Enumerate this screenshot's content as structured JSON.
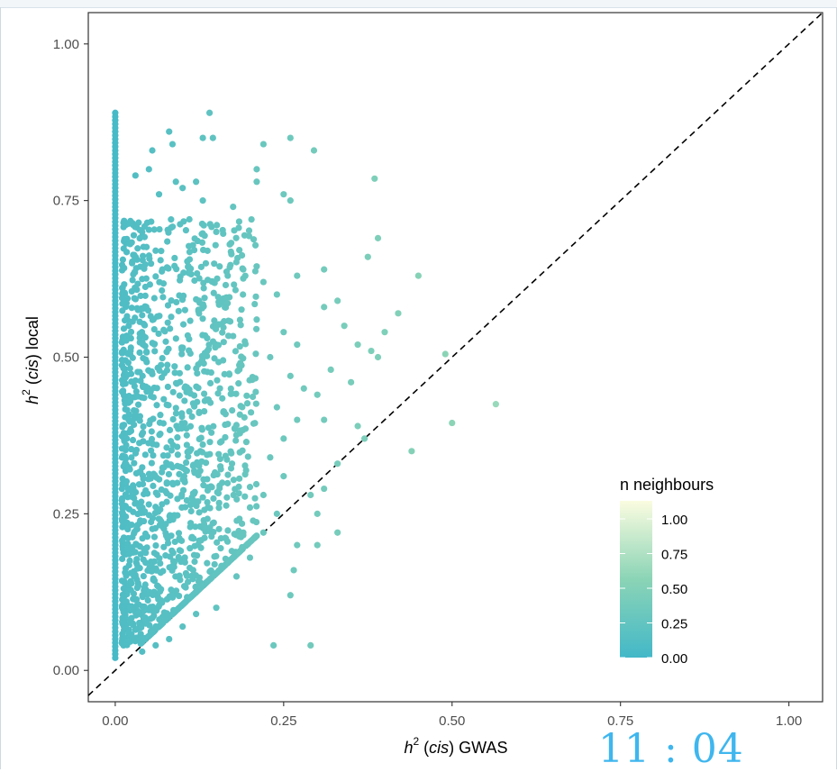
{
  "chart_data": {
    "type": "scatter",
    "title": "",
    "xlabel": {
      "math": "h",
      "sup": "2",
      "paren": "cis",
      "word": "GWAS"
    },
    "ylabel": {
      "math": "h",
      "sup": "2",
      "paren": "cis",
      "word": "local"
    },
    "xlim": [
      -0.04,
      1.05
    ],
    "ylim": [
      -0.05,
      1.05
    ],
    "x_ticks": [
      "0.00",
      "0.25",
      "0.50",
      "0.75",
      "1.00"
    ],
    "y_ticks": [
      "0.00",
      "0.25",
      "0.50",
      "0.75",
      "1.00"
    ],
    "grid": false,
    "reference_line": {
      "style": "dashed",
      "slope": 1,
      "intercept": 0
    },
    "color_scale": {
      "title": "n neighbours",
      "ticks": [
        "0.00",
        "0.25",
        "0.50",
        "0.75",
        "1.00"
      ],
      "low": "#43b8c8",
      "mid": "#8bd4b6",
      "high": "#fbfce0"
    },
    "legend_position": "bottom-right",
    "points": [
      [
        0.14,
        0.89
      ],
      [
        0.08,
        0.86
      ],
      [
        0.13,
        0.85
      ],
      [
        0.145,
        0.85
      ],
      [
        0.22,
        0.84
      ],
      [
        0.26,
        0.85
      ],
      [
        0.295,
        0.83
      ],
      [
        0.055,
        0.83
      ],
      [
        0.085,
        0.84
      ],
      [
        0.05,
        0.8
      ],
      [
        0.09,
        0.78
      ],
      [
        0.03,
        0.79
      ],
      [
        0.12,
        0.78
      ],
      [
        0.21,
        0.8
      ],
      [
        0.21,
        0.78
      ],
      [
        0.385,
        0.785
      ],
      [
        0.065,
        0.76
      ],
      [
        0.1,
        0.77
      ],
      [
        0.25,
        0.76
      ],
      [
        0.26,
        0.75
      ],
      [
        0.13,
        0.75
      ],
      [
        0.175,
        0.74
      ],
      [
        0.39,
        0.69
      ],
      [
        0.45,
        0.63
      ],
      [
        0.375,
        0.66
      ],
      [
        0.31,
        0.64
      ],
      [
        0.27,
        0.63
      ],
      [
        0.33,
        0.59
      ],
      [
        0.31,
        0.58
      ],
      [
        0.42,
        0.57
      ],
      [
        0.34,
        0.55
      ],
      [
        0.4,
        0.54
      ],
      [
        0.36,
        0.52
      ],
      [
        0.38,
        0.51
      ],
      [
        0.39,
        0.5
      ],
      [
        0.49,
        0.505
      ],
      [
        0.32,
        0.48
      ],
      [
        0.35,
        0.46
      ],
      [
        0.3,
        0.44
      ],
      [
        0.565,
        0.425
      ],
      [
        0.31,
        0.4
      ],
      [
        0.36,
        0.39
      ],
      [
        0.5,
        0.395
      ],
      [
        0.37,
        0.37
      ],
      [
        0.44,
        0.35
      ],
      [
        0.33,
        0.33
      ],
      [
        0.31,
        0.29
      ],
      [
        0.29,
        0.28
      ],
      [
        0.3,
        0.25
      ],
      [
        0.33,
        0.22
      ],
      [
        0.27,
        0.2
      ],
      [
        0.3,
        0.2
      ],
      [
        0.265,
        0.16
      ],
      [
        0.26,
        0.12
      ],
      [
        0.235,
        0.04
      ],
      [
        0.29,
        0.04
      ],
      [
        0.22,
        0.22
      ],
      [
        0.2,
        0.18
      ],
      [
        0.18,
        0.15
      ],
      [
        0.15,
        0.1
      ],
      [
        0.12,
        0.09
      ],
      [
        0.1,
        0.07
      ],
      [
        0.08,
        0.05
      ],
      [
        0.06,
        0.04
      ],
      [
        0.04,
        0.03
      ],
      [
        0.02,
        0.06
      ],
      [
        0.03,
        0.1
      ],
      [
        0.02,
        0.4
      ],
      [
        0.02,
        0.55
      ],
      [
        0.025,
        0.65
      ],
      [
        0.04,
        0.7
      ],
      [
        0.06,
        0.67
      ],
      [
        0.07,
        0.64
      ],
      [
        0.11,
        0.72
      ],
      [
        0.15,
        0.7
      ],
      [
        0.17,
        0.68
      ],
      [
        0.19,
        0.64
      ],
      [
        0.22,
        0.62
      ],
      [
        0.24,
        0.6
      ],
      [
        0.21,
        0.56
      ],
      [
        0.25,
        0.54
      ],
      [
        0.27,
        0.52
      ],
      [
        0.23,
        0.5
      ],
      [
        0.26,
        0.47
      ],
      [
        0.28,
        0.45
      ],
      [
        0.24,
        0.42
      ],
      [
        0.27,
        0.4
      ],
      [
        0.25,
        0.37
      ],
      [
        0.23,
        0.34
      ],
      [
        0.25,
        0.31
      ],
      [
        0.22,
        0.28
      ],
      [
        0.2,
        0.26
      ],
      [
        0.24,
        0.25
      ],
      [
        0.19,
        0.22
      ]
    ],
    "axis_value_cluster": {
      "x": 0.0,
      "y_from": 0.02,
      "y_to": 0.89
    }
  },
  "clock": {
    "text": "11 : 04"
  }
}
